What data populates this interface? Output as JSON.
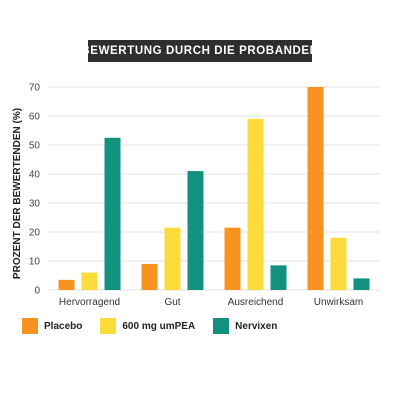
{
  "chart_data": {
    "type": "bar",
    "title": "BEWERTUNG DURCH DIE PROBANDEN",
    "ylabel": "PROZENT DER BEWERTENDEN (%)",
    "xlabel": "",
    "ylim": [
      0,
      70
    ],
    "yticks": [
      "0",
      "10",
      "20",
      "30",
      "40",
      "50",
      "60",
      "70"
    ],
    "grid": true,
    "legend_position": "bottom",
    "categories": [
      "Hervorragend",
      "Gut",
      "Ausreichend",
      "Unwirksam"
    ],
    "series": [
      {
        "name": "Placebo",
        "color": "#f7931e",
        "values": [
          3.5,
          9,
          21.5,
          70
        ]
      },
      {
        "name": "600 mg umPEA",
        "color": "#fddb3a",
        "values": [
          6,
          21.5,
          59,
          18
        ]
      },
      {
        "name": "Nervixen",
        "color": "#11917e",
        "values": [
          52.5,
          41,
          8.5,
          4
        ]
      }
    ]
  }
}
